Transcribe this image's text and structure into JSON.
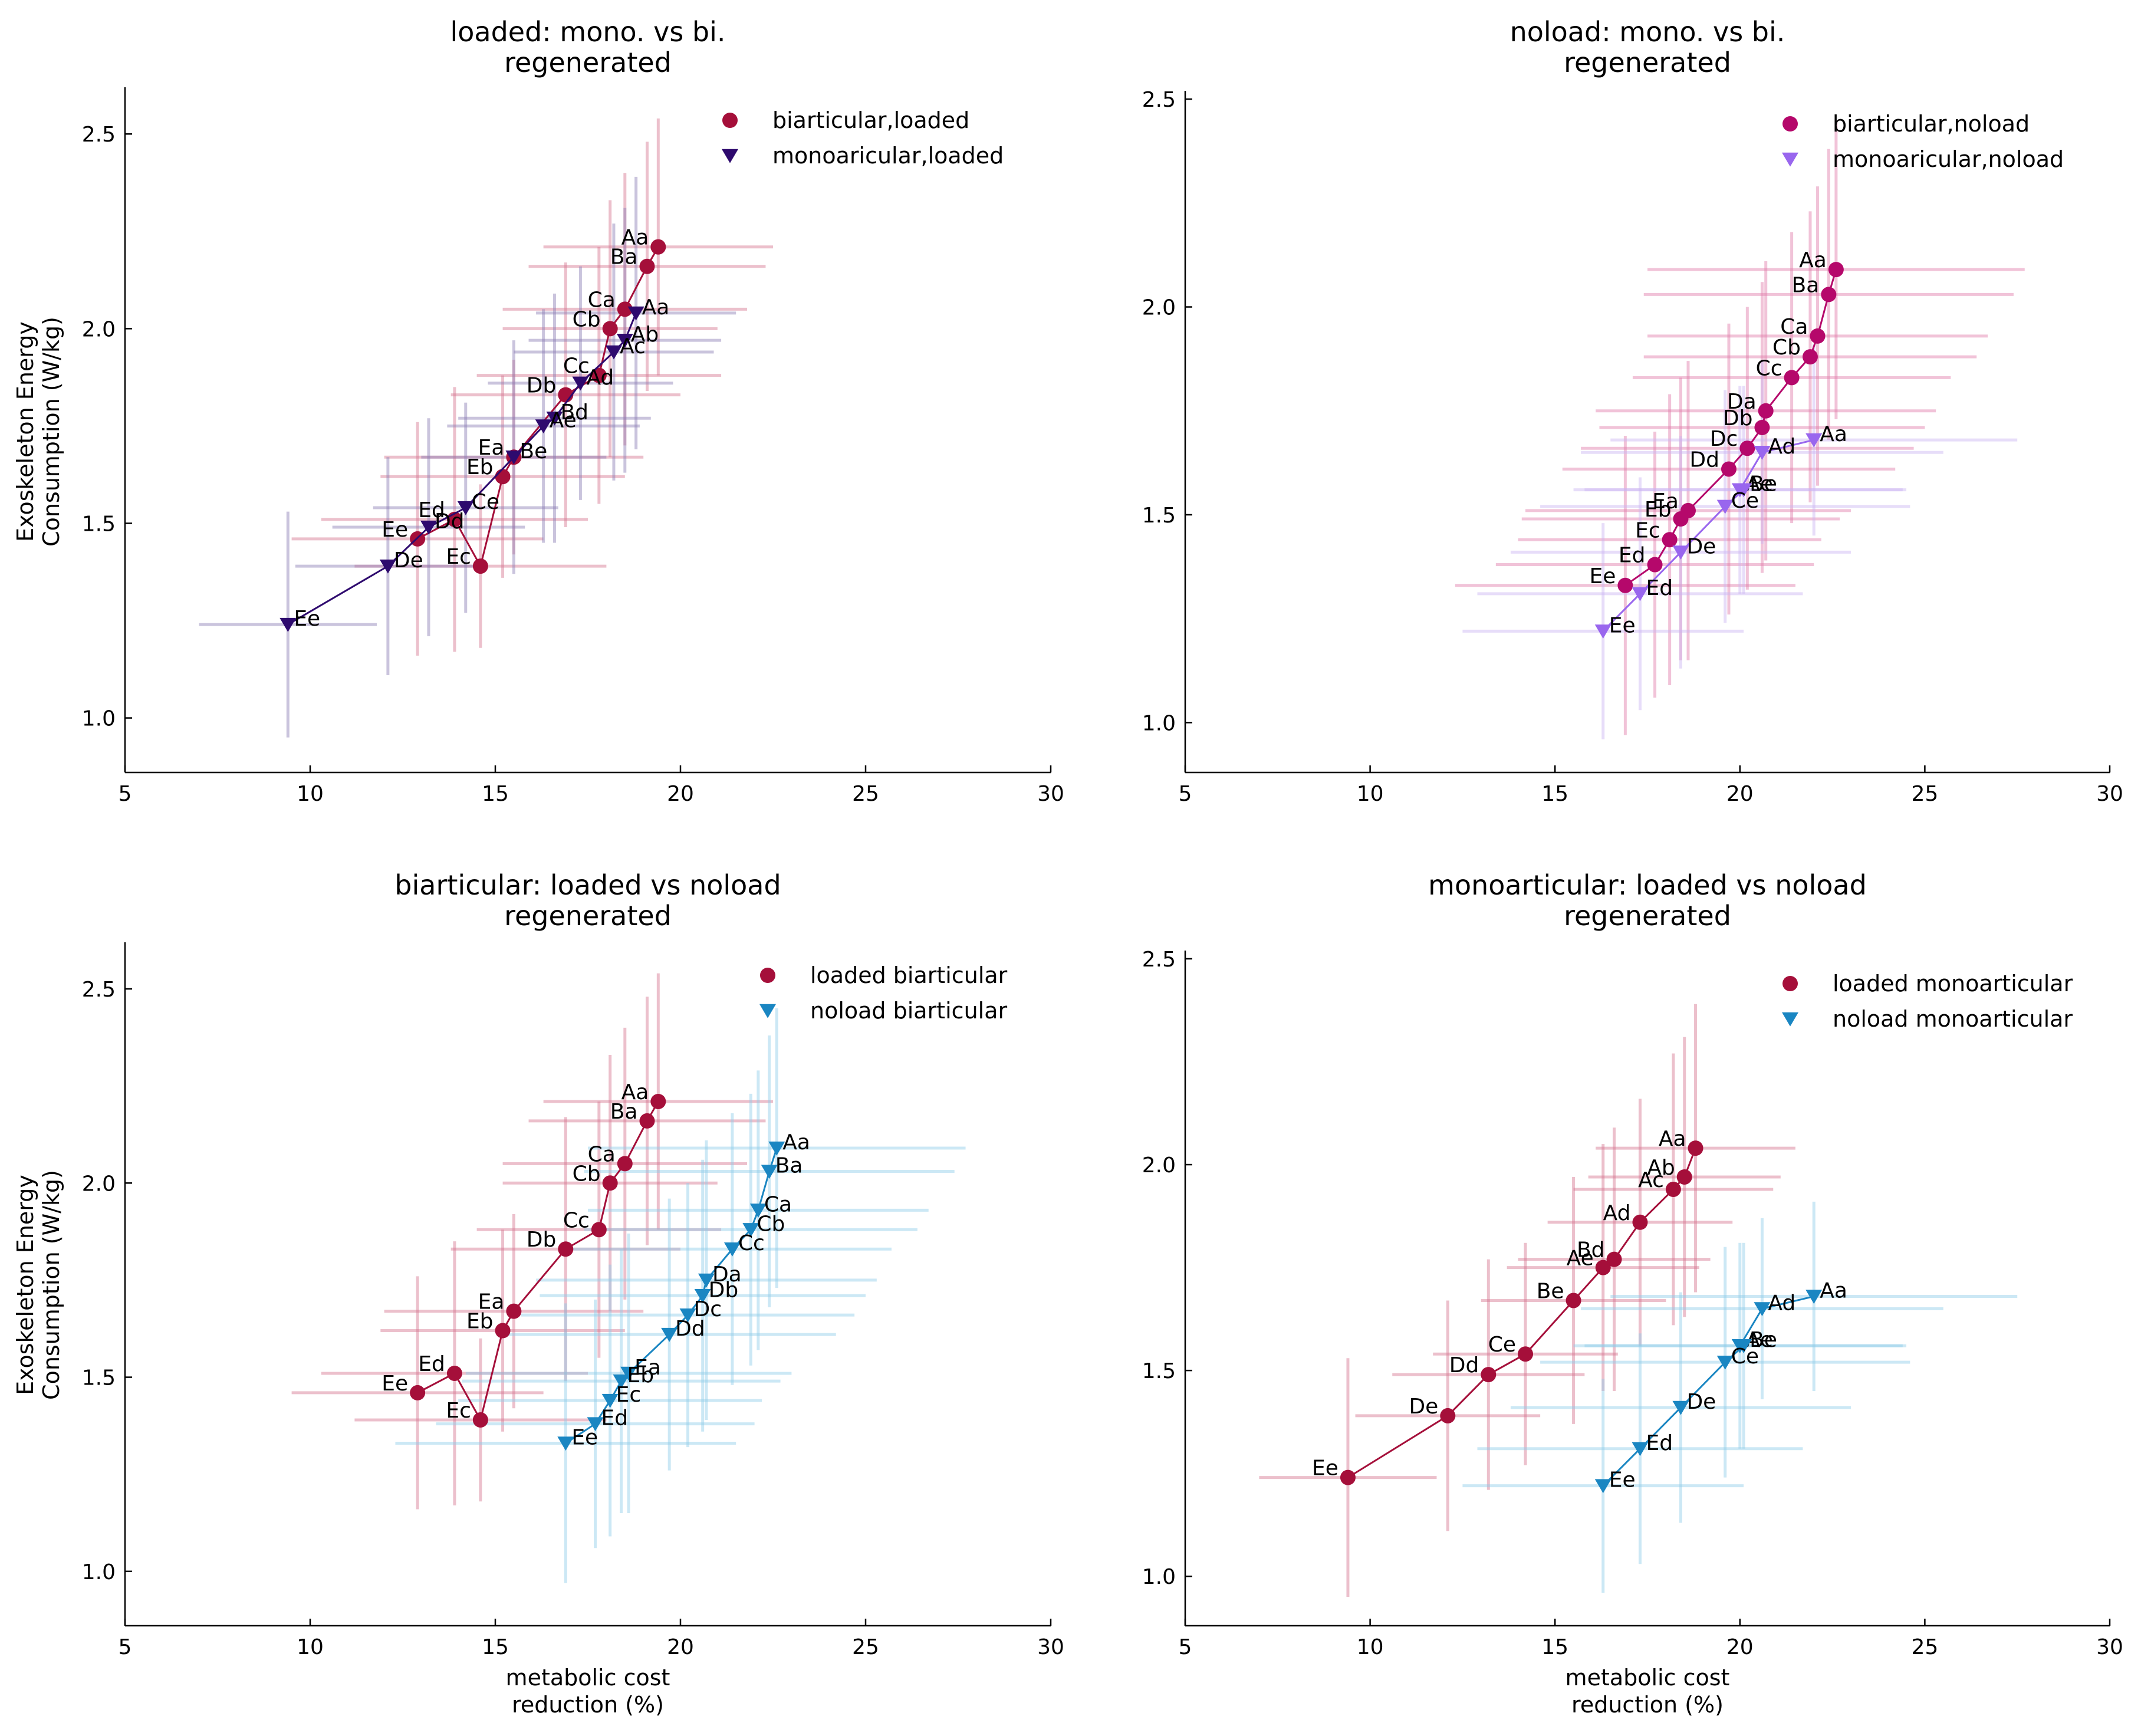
{
  "panels": [
    {
      "title_line1": "loaded: mono. vs bi.",
      "title_line2": "regenerated",
      "ylabel_line1": "Exoskeleton Energy",
      "ylabel_line2": "Consumption (W/kg)",
      "xlabel_line1": "",
      "xlabel_line2": ""
    },
    {
      "title_line1": "noload: mono. vs bi.",
      "title_line2": "regenerated",
      "ylabel_line1": "",
      "ylabel_line2": "",
      "xlabel_line1": "",
      "xlabel_line2": ""
    },
    {
      "title_line1": "biarticular: loaded vs noload",
      "title_line2": "regenerated",
      "ylabel_line1": "Exoskeleton Energy",
      "ylabel_line2": "Consumption (W/kg)",
      "xlabel_line1": "metabolic cost",
      "xlabel_line2": "reduction (%)"
    },
    {
      "title_line1": "monoarticular: loaded vs noload",
      "title_line2": "regenerated",
      "ylabel_line1": "",
      "ylabel_line2": "",
      "xlabel_line1": "metabolic cost",
      "xlabel_line2": "reduction (%)"
    }
  ],
  "chart_data": [
    {
      "type": "scatter",
      "title": "loaded: mono. vs bi.\nregenerated",
      "ylabel": "Exoskeleton Energy Consumption (W/kg)",
      "xlim": [
        5,
        30
      ],
      "ylim_top": 2.62,
      "ylim_bottom": 0.86,
      "xticks": [
        5,
        10,
        15,
        20,
        25,
        30
      ],
      "yticks": [
        1.0,
        1.5,
        2.0,
        2.5
      ],
      "legend": "top-right",
      "series": [
        {
          "name": "biarticular,loaded",
          "marker": "circle",
          "color": "#a50f3a",
          "errcolor": "#d4738f",
          "labels": [
            "Aa",
            "Ba",
            "Ca",
            "Cb",
            "Cc",
            "Db",
            "Ea",
            "Eb",
            "Ec",
            "Ed",
            "Ee"
          ],
          "x": [
            19.4,
            19.1,
            18.5,
            18.1,
            17.8,
            16.9,
            15.5,
            15.2,
            14.6,
            13.9,
            12.9
          ],
          "y": [
            2.21,
            2.16,
            2.05,
            2.0,
            1.88,
            1.83,
            1.67,
            1.62,
            1.39,
            1.51,
            1.46
          ],
          "xerr": [
            3.1,
            3.2,
            3.3,
            2.9,
            3.3,
            3.1,
            3.5,
            3.3,
            3.4,
            3.6,
            3.4
          ],
          "yerr": [
            0.33,
            0.32,
            0.35,
            0.33,
            0.33,
            0.34,
            0.25,
            0.26,
            0.21,
            0.34,
            0.3
          ]
        },
        {
          "name": "monoaricular,loaded",
          "marker": "triangle-down",
          "color": "#2e0a6e",
          "errcolor": "#8a7db3",
          "labels": [
            "Aa",
            "Ab",
            "Ac",
            "Ad",
            "Bd",
            "Ae",
            "Be",
            "Ce",
            "Dd",
            "De",
            "Ee"
          ],
          "x": [
            18.8,
            18.5,
            18.2,
            17.3,
            16.6,
            16.3,
            15.5,
            14.2,
            13.2,
            12.1,
            9.4
          ],
          "y": [
            2.04,
            1.97,
            1.94,
            1.86,
            1.77,
            1.75,
            1.67,
            1.54,
            1.49,
            1.39,
            1.24
          ],
          "xerr": [
            2.7,
            2.6,
            2.7,
            2.5,
            2.6,
            2.6,
            2.5,
            2.5,
            2.6,
            2.5,
            2.4
          ],
          "yerr": [
            0.35,
            0.34,
            0.33,
            0.3,
            0.32,
            0.3,
            0.3,
            0.27,
            0.28,
            0.28,
            0.29
          ]
        }
      ]
    },
    {
      "type": "scatter",
      "title": "noload: mono. vs bi.\nregenerated",
      "xlim": [
        5,
        30
      ],
      "ylim_top": 2.52,
      "ylim_bottom": 0.88,
      "xticks": [
        5,
        10,
        15,
        20,
        25,
        30
      ],
      "yticks": [
        1.0,
        1.5,
        2.0,
        2.5
      ],
      "legend": "top-right",
      "series": [
        {
          "name": "biarticular,noload",
          "marker": "circle",
          "color": "#b5086b",
          "errcolor": "#e07aa9",
          "labels": [
            "Aa",
            "Ba",
            "Ca",
            "Cb",
            "Cc",
            "Da",
            "Db",
            "Dc",
            "Dd",
            "Ea",
            "Eb",
            "Ec",
            "Ed",
            "Ee"
          ],
          "x": [
            22.6,
            22.4,
            22.1,
            21.9,
            21.4,
            20.7,
            20.6,
            20.2,
            19.7,
            18.6,
            18.4,
            18.1,
            17.7,
            16.9
          ],
          "y": [
            2.09,
            2.03,
            1.93,
            1.88,
            1.83,
            1.75,
            1.71,
            1.66,
            1.61,
            1.51,
            1.49,
            1.44,
            1.38,
            1.33
          ],
          "xerr": [
            5.1,
            5.0,
            4.6,
            4.5,
            4.3,
            4.6,
            4.4,
            4.5,
            4.5,
            4.4,
            4.3,
            4.1,
            4.3,
            4.6
          ],
          "yerr": [
            0.36,
            0.35,
            0.36,
            0.35,
            0.35,
            0.36,
            0.35,
            0.34,
            0.35,
            0.36,
            0.34,
            0.35,
            0.32,
            0.36
          ]
        },
        {
          "name": "monoaricular,noload",
          "marker": "triangle-down",
          "color": "#9966ee",
          "errcolor": "#c9b3f2",
          "labels": [
            "Aa",
            "Ad",
            "Ae",
            "Be",
            "Ce",
            "De",
            "Ed",
            "Ee"
          ],
          "x": [
            22.0,
            20.6,
            20.0,
            20.1,
            19.6,
            18.4,
            17.3,
            16.3
          ],
          "y": [
            1.68,
            1.65,
            1.56,
            1.56,
            1.52,
            1.41,
            1.31,
            1.22
          ],
          "xerr": [
            5.5,
            4.9,
            4.5,
            4.3,
            5.0,
            4.6,
            4.4,
            3.8
          ],
          "yerr": [
            0.23,
            0.22,
            0.25,
            0.25,
            0.28,
            0.28,
            0.28,
            0.26
          ]
        }
      ]
    },
    {
      "type": "scatter",
      "title": "biarticular: loaded vs noload\nregenerated",
      "xlabel": "metabolic cost reduction (%)",
      "ylabel": "Exoskeleton Energy Consumption (W/kg)",
      "xlim": [
        5,
        30
      ],
      "ylim_top": 2.62,
      "ylim_bottom": 0.86,
      "xticks": [
        5,
        10,
        15,
        20,
        25,
        30
      ],
      "yticks": [
        1.0,
        1.5,
        2.0,
        2.5
      ],
      "legend": "top-right",
      "series": [
        {
          "name": "loaded biarticular",
          "marker": "circle",
          "color": "#a50f3a",
          "errcolor": "#d4738f",
          "labels": [
            "Aa",
            "Ba",
            "Ca",
            "Cb",
            "Cc",
            "Db",
            "Ea",
            "Eb",
            "Ec",
            "Ed",
            "Ee"
          ],
          "x": [
            19.4,
            19.1,
            18.5,
            18.1,
            17.8,
            16.9,
            15.5,
            15.2,
            14.6,
            13.9,
            12.9
          ],
          "y": [
            2.21,
            2.16,
            2.05,
            2.0,
            1.88,
            1.83,
            1.67,
            1.62,
            1.39,
            1.51,
            1.46
          ],
          "xerr": [
            3.1,
            3.2,
            3.3,
            2.9,
            3.3,
            3.1,
            3.5,
            3.3,
            3.4,
            3.6,
            3.4
          ],
          "yerr": [
            0.33,
            0.32,
            0.35,
            0.33,
            0.33,
            0.34,
            0.25,
            0.26,
            0.21,
            0.34,
            0.3
          ]
        },
        {
          "name": "noload biarticular",
          "marker": "triangle-down",
          "color": "#1a86c2",
          "errcolor": "#8ecde8",
          "labels": [
            "Aa",
            "Ba",
            "Ca",
            "Cb",
            "Cc",
            "Da",
            "Db",
            "Dc",
            "Dd",
            "Ea",
            "Eb",
            "Ec",
            "Ed",
            "Ee"
          ],
          "x": [
            22.6,
            22.4,
            22.1,
            21.9,
            21.4,
            20.7,
            20.6,
            20.2,
            19.7,
            18.6,
            18.4,
            18.1,
            17.7,
            16.9
          ],
          "y": [
            2.09,
            2.03,
            1.93,
            1.88,
            1.83,
            1.75,
            1.71,
            1.66,
            1.61,
            1.51,
            1.49,
            1.44,
            1.38,
            1.33
          ],
          "xerr": [
            5.1,
            5.0,
            4.6,
            4.5,
            4.3,
            4.6,
            4.4,
            4.5,
            4.5,
            4.4,
            4.3,
            4.1,
            4.3,
            4.6
          ],
          "yerr": [
            0.36,
            0.35,
            0.36,
            0.35,
            0.35,
            0.36,
            0.35,
            0.34,
            0.35,
            0.36,
            0.34,
            0.35,
            0.32,
            0.36
          ]
        }
      ]
    },
    {
      "type": "scatter",
      "title": "monoarticular: loaded vs noload\nregenerated",
      "xlabel": "metabolic cost reduction (%)",
      "xlim": [
        5,
        30
      ],
      "ylim_top": 2.52,
      "ylim_bottom": 0.88,
      "xticks": [
        5,
        10,
        15,
        20,
        25,
        30
      ],
      "yticks": [
        1.0,
        1.5,
        2.0,
        2.5
      ],
      "legend": "top-right",
      "series": [
        {
          "name": "loaded monoarticular",
          "marker": "circle",
          "color": "#a50f3a",
          "errcolor": "#d4738f",
          "labels": [
            "Aa",
            "Ab",
            "Ac",
            "Ad",
            "Bd",
            "Ae",
            "Be",
            "Ce",
            "Dd",
            "De",
            "Ee"
          ],
          "x": [
            18.8,
            18.5,
            18.2,
            17.3,
            16.6,
            16.3,
            15.5,
            14.2,
            13.2,
            12.1,
            9.4
          ],
          "y": [
            2.04,
            1.97,
            1.94,
            1.86,
            1.77,
            1.75,
            1.67,
            1.54,
            1.49,
            1.39,
            1.24
          ],
          "xerr": [
            2.7,
            2.6,
            2.7,
            2.5,
            2.6,
            2.6,
            2.5,
            2.5,
            2.6,
            2.5,
            2.4
          ],
          "yerr": [
            0.35,
            0.34,
            0.33,
            0.3,
            0.32,
            0.3,
            0.3,
            0.27,
            0.28,
            0.28,
            0.29
          ]
        },
        {
          "name": "noload monoarticular",
          "marker": "triangle-down",
          "color": "#1a86c2",
          "errcolor": "#8ecde8",
          "labels": [
            "Aa",
            "Ad",
            "Ae",
            "Be",
            "Ce",
            "De",
            "Ed",
            "Ee"
          ],
          "x": [
            22.0,
            20.6,
            20.0,
            20.1,
            19.6,
            18.4,
            17.3,
            16.3
          ],
          "y": [
            1.68,
            1.65,
            1.56,
            1.56,
            1.52,
            1.41,
            1.31,
            1.22
          ],
          "xerr": [
            5.5,
            4.9,
            4.5,
            4.3,
            5.0,
            4.6,
            4.4,
            3.8
          ],
          "yerr": [
            0.23,
            0.22,
            0.25,
            0.25,
            0.28,
            0.28,
            0.28,
            0.26
          ]
        }
      ]
    }
  ]
}
